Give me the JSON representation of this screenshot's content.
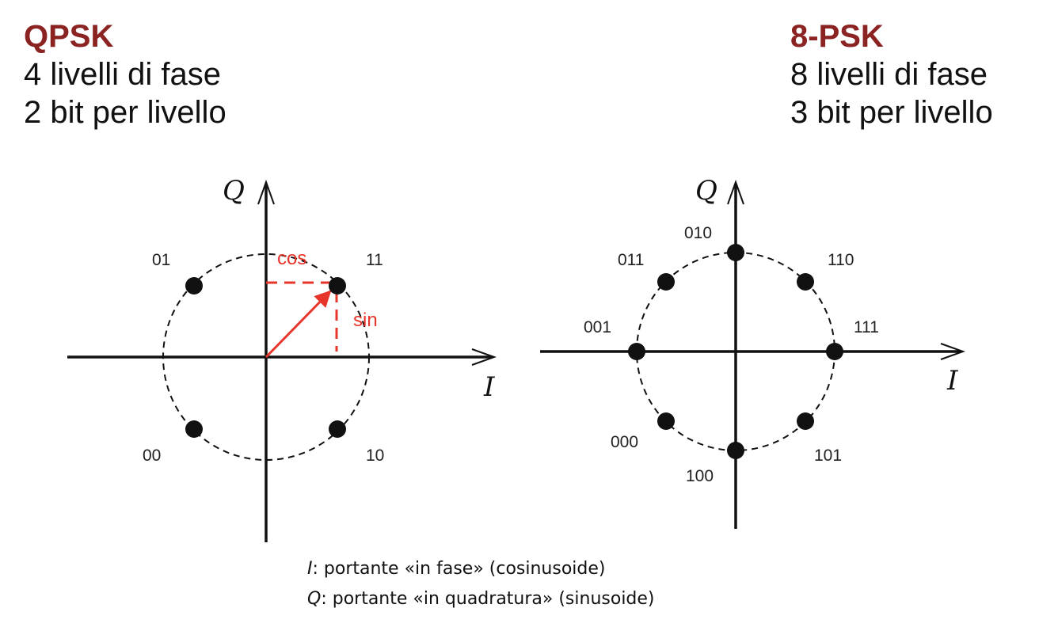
{
  "left_header": {
    "title": "QPSK",
    "line1": "4 livelli di fase",
    "line2": "2 bit per livello"
  },
  "right_header": {
    "title": "8-PSK",
    "line1": "8 livelli di fase",
    "line2": "3 bit per livello"
  },
  "qpsk": {
    "axis_i": "I",
    "axis_q": "Q",
    "symbols": [
      "01",
      "11",
      "00",
      "10"
    ],
    "cos_label": "cos",
    "sin_label": "sin"
  },
  "psk8": {
    "axis_i": "I",
    "axis_q": "Q",
    "symbols": [
      "010",
      "011",
      "110",
      "001",
      "111",
      "000",
      "101",
      "100"
    ]
  },
  "caption": {
    "line1_symbol": "I",
    "line1_text": ": portante «in fase» (cosinusoide)",
    "line2_symbol": "Q",
    "line2_text": ": portante «in quadratura» (sinusoide)"
  },
  "colors": {
    "title": "#8b2323",
    "highlight": "#e8352b",
    "ink": "#111111"
  }
}
